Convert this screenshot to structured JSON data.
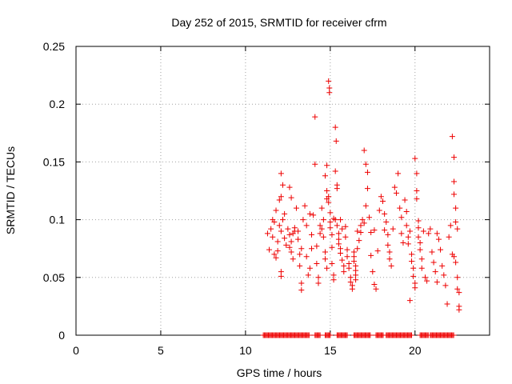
{
  "chart_data": {
    "type": "scatter",
    "title": "Day 252 of 2015, SRMTID for receiver cfrm",
    "xlabel": "GPS time / hours",
    "ylabel": "SRMTID / TECUs",
    "xlim": [
      0,
      24.4
    ],
    "ylim": [
      0,
      0.25
    ],
    "x_ticks": [
      0,
      5,
      10,
      15,
      20
    ],
    "x_tick_labels": [
      "0",
      "5",
      "10",
      "15",
      "20"
    ],
    "y_ticks": [
      0,
      0.05,
      0.1,
      0.15,
      0.2,
      0.25
    ],
    "y_tick_labels": [
      "0",
      "0.05",
      "0.1",
      "0.15",
      "0.2",
      "0.25"
    ],
    "grid": true,
    "marker": "plus",
    "color": "#ee0000",
    "series": [
      {
        "name": "SRMTID",
        "points": [
          [
            11.3,
            0.088
          ],
          [
            11.4,
            0.074
          ],
          [
            11.5,
            0.092
          ],
          [
            11.6,
            0.085
          ],
          [
            11.7,
            0.07
          ],
          [
            11.8,
            0.067
          ],
          [
            11.9,
            0.081
          ],
          [
            12.0,
            0.095
          ],
          [
            12.1,
            0.09
          ],
          [
            12.2,
            0.1
          ],
          [
            12.3,
            0.084
          ],
          [
            12.4,
            0.078
          ],
          [
            11.6,
            0.1
          ],
          [
            11.7,
            0.098
          ],
          [
            11.8,
            0.108
          ],
          [
            12.1,
            0.14
          ],
          [
            12.2,
            0.13
          ],
          [
            12.1,
            0.12
          ],
          [
            12.0,
            0.117
          ],
          [
            12.1,
            0.055
          ],
          [
            12.1,
            0.051
          ],
          [
            11.9,
            0.073
          ],
          [
            12.3,
            0.105
          ],
          [
            12.5,
            0.092
          ],
          [
            12.6,
            0.087
          ],
          [
            12.7,
            0.081
          ],
          [
            12.8,
            0.088
          ],
          [
            12.9,
            0.093
          ],
          [
            12.6,
            0.128
          ],
          [
            12.7,
            0.119
          ],
          [
            12.6,
            0.076
          ],
          [
            12.7,
            0.072
          ],
          [
            12.8,
            0.066
          ],
          [
            13.0,
            0.11
          ],
          [
            13.1,
            0.083
          ],
          [
            13.2,
            0.07
          ],
          [
            13.3,
            0.075
          ],
          [
            13.2,
            0.06
          ],
          [
            13.3,
            0.045
          ],
          [
            13.3,
            0.039
          ],
          [
            13.4,
            0.1
          ],
          [
            13.5,
            0.112
          ],
          [
            13.6,
            0.095
          ],
          [
            13.6,
            0.068
          ],
          [
            13.7,
            0.052
          ],
          [
            13.8,
            0.058
          ],
          [
            13.9,
            0.087
          ],
          [
            13.9,
            0.075
          ],
          [
            14.0,
            0.104
          ],
          [
            14.1,
            0.189
          ],
          [
            14.1,
            0.148
          ],
          [
            14.2,
            0.077
          ],
          [
            14.2,
            0.062
          ],
          [
            14.3,
            0.05
          ],
          [
            14.3,
            0.045
          ],
          [
            14.4,
            0.088
          ],
          [
            14.4,
            0.095
          ],
          [
            14.5,
            0.11
          ],
          [
            14.6,
            0.1
          ],
          [
            14.6,
            0.085
          ],
          [
            14.7,
            0.072
          ],
          [
            14.7,
            0.066
          ],
          [
            14.8,
            0.058
          ],
          [
            14.8,
            0.147
          ],
          [
            14.8,
            0.125
          ],
          [
            14.9,
            0.22
          ],
          [
            14.95,
            0.214
          ],
          [
            14.95,
            0.21
          ],
          [
            14.9,
            0.12
          ],
          [
            14.9,
            0.115
          ],
          [
            15.0,
            0.106
          ],
          [
            15.0,
            0.098
          ],
          [
            15.0,
            0.093
          ],
          [
            15.1,
            0.087
          ],
          [
            15.1,
            0.076
          ],
          [
            15.1,
            0.062
          ],
          [
            15.2,
            0.052
          ],
          [
            15.2,
            0.048
          ],
          [
            14.7,
            0.138
          ],
          [
            14.8,
            0.118
          ],
          [
            15.3,
            0.18
          ],
          [
            15.35,
            0.168
          ],
          [
            15.3,
            0.142
          ],
          [
            15.4,
            0.13
          ],
          [
            15.4,
            0.127
          ],
          [
            15.3,
            0.1
          ],
          [
            15.4,
            0.095
          ],
          [
            15.5,
            0.088
          ],
          [
            15.5,
            0.083
          ],
          [
            15.5,
            0.079
          ],
          [
            15.6,
            0.075
          ],
          [
            15.6,
            0.071
          ],
          [
            15.6,
            0.1
          ],
          [
            15.7,
            0.092
          ],
          [
            15.7,
            0.065
          ],
          [
            15.8,
            0.06
          ],
          [
            15.8,
            0.055
          ],
          [
            15.9,
            0.085
          ],
          [
            16.0,
            0.074
          ],
          [
            16.0,
            0.068
          ],
          [
            16.1,
            0.062
          ],
          [
            16.1,
            0.058
          ],
          [
            16.2,
            0.05
          ],
          [
            16.2,
            0.046
          ],
          [
            16.3,
            0.043
          ],
          [
            16.3,
            0.04
          ],
          [
            16.4,
            0.072
          ],
          [
            16.4,
            0.068
          ],
          [
            16.4,
            0.064
          ],
          [
            16.5,
            0.06
          ],
          [
            16.5,
            0.056
          ],
          [
            16.5,
            0.052
          ],
          [
            16.5,
            0.048
          ],
          [
            16.6,
            0.075
          ],
          [
            16.6,
            0.09
          ],
          [
            16.7,
            0.082
          ],
          [
            16.8,
            0.095
          ],
          [
            16.9,
            0.1
          ],
          [
            17.0,
            0.16
          ],
          [
            17.1,
            0.148
          ],
          [
            17.2,
            0.141
          ],
          [
            17.2,
            0.127
          ],
          [
            17.1,
            0.112
          ],
          [
            17.0,
            0.097
          ],
          [
            17.3,
            0.102
          ],
          [
            17.4,
            0.089
          ],
          [
            17.4,
            0.069
          ],
          [
            17.5,
            0.055
          ],
          [
            17.6,
            0.044
          ],
          [
            17.7,
            0.04
          ],
          [
            17.8,
            0.073
          ],
          [
            17.9,
            0.108
          ],
          [
            18.0,
            0.12
          ],
          [
            18.1,
            0.116
          ],
          [
            18.2,
            0.105
          ],
          [
            18.3,
            0.098
          ],
          [
            18.4,
            0.087
          ],
          [
            18.4,
            0.078
          ],
          [
            18.5,
            0.072
          ],
          [
            18.5,
            0.066
          ],
          [
            18.6,
            0.06
          ],
          [
            18.7,
            0.092
          ],
          [
            18.8,
            0.128
          ],
          [
            18.9,
            0.123
          ],
          [
            19.0,
            0.14
          ],
          [
            19.1,
            0.11
          ],
          [
            19.2,
            0.102
          ],
          [
            19.2,
            0.088
          ],
          [
            19.3,
            0.08
          ],
          [
            19.4,
            0.117
          ],
          [
            19.5,
            0.107
          ],
          [
            19.5,
            0.095
          ],
          [
            19.6,
            0.085
          ],
          [
            19.6,
            0.079
          ],
          [
            19.7,
            0.03
          ],
          [
            19.8,
            0.07
          ],
          [
            19.8,
            0.064
          ],
          [
            19.9,
            0.058
          ],
          [
            19.9,
            0.051
          ],
          [
            20.0,
            0.045
          ],
          [
            20.0,
            0.041
          ],
          [
            20.0,
            0.153
          ],
          [
            20.1,
            0.14
          ],
          [
            20.1,
            0.125
          ],
          [
            20.1,
            0.118
          ],
          [
            20.2,
            0.099
          ],
          [
            20.2,
            0.093
          ],
          [
            20.2,
            0.085
          ],
          [
            20.3,
            0.08
          ],
          [
            20.3,
            0.074
          ],
          [
            20.4,
            0.066
          ],
          [
            20.4,
            0.058
          ],
          [
            20.6,
            0.05
          ],
          [
            20.7,
            0.047
          ],
          [
            20.8,
            0.088
          ],
          [
            20.9,
            0.092
          ],
          [
            21.0,
            0.072
          ],
          [
            21.1,
            0.063
          ],
          [
            21.2,
            0.055
          ],
          [
            21.3,
            0.046
          ],
          [
            21.4,
            0.083
          ],
          [
            21.5,
            0.074
          ],
          [
            21.6,
            0.06
          ],
          [
            21.7,
            0.052
          ],
          [
            21.8,
            0.043
          ],
          [
            21.9,
            0.027
          ],
          [
            22.0,
            0.085
          ],
          [
            22.1,
            0.095
          ],
          [
            22.2,
            0.172
          ],
          [
            22.3,
            0.154
          ],
          [
            22.3,
            0.133
          ],
          [
            22.3,
            0.122
          ],
          [
            22.4,
            0.11
          ],
          [
            22.4,
            0.098
          ],
          [
            22.5,
            0.092
          ],
          [
            22.2,
            0.07
          ],
          [
            22.3,
            0.068
          ],
          [
            22.4,
            0.063
          ],
          [
            22.5,
            0.05
          ],
          [
            22.5,
            0.04
          ],
          [
            22.6,
            0.037
          ],
          [
            22.6,
            0.025
          ],
          [
            22.6,
            0.022
          ],
          [
            12.9,
            0.09
          ],
          [
            13.1,
            0.09
          ],
          [
            14.5,
            0.092
          ],
          [
            15.9,
            0.094
          ],
          [
            16.8,
            0.089
          ],
          [
            18.2,
            0.091
          ],
          [
            19.7,
            0.09
          ],
          [
            20.5,
            0.09
          ],
          [
            21.3,
            0.088
          ],
          [
            17.6,
            0.091
          ],
          [
            15.2,
            0.101
          ],
          [
            13.8,
            0.105
          ]
        ]
      }
    ],
    "zero_markers": {
      "y": 0,
      "segments": [
        [
          11.05,
          13.8
        ],
        [
          14.1,
          14.4
        ],
        [
          14.7,
          15.05
        ],
        [
          15.4,
          16.0
        ],
        [
          16.4,
          17.4
        ],
        [
          17.7,
          18.15
        ],
        [
          18.3,
          19.8
        ],
        [
          20.3,
          20.8
        ],
        [
          20.9,
          22.3
        ]
      ],
      "step": 0.06
    }
  }
}
